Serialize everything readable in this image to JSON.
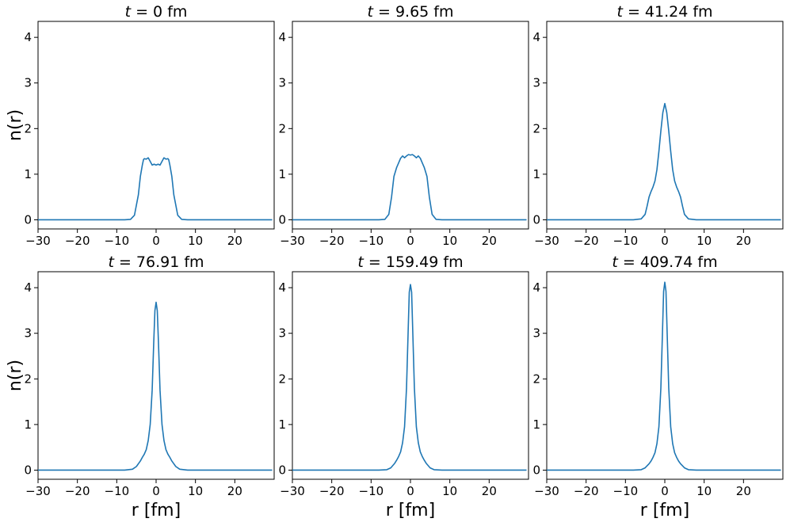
{
  "figure": {
    "ylabel": "n(r)",
    "xlabel": "r [fm]",
    "line_color": "#1f77b4"
  },
  "chart_data": [
    {
      "type": "line",
      "title_var": "t",
      "title_rest": " = 0 fm",
      "xlim": [
        -30,
        30
      ],
      "ylim": [
        -0.2,
        4.35
      ],
      "xticks": [
        -30,
        -20,
        -10,
        0,
        10,
        20
      ],
      "yticks": [
        0,
        1,
        2,
        3,
        4
      ],
      "show_xlabel": false,
      "show_ylabel": true,
      "x": [
        -30,
        -8,
        -6.5,
        -5.5,
        -4.5,
        -4,
        -3.5,
        -3.2,
        -3,
        -2.5,
        -2,
        -1.5,
        -1,
        -0.5,
        0,
        0.5,
        1,
        1.5,
        2,
        2.5,
        3,
        3.2,
        3.5,
        4,
        4.5,
        5.5,
        6.5,
        8,
        29.5
      ],
      "y": [
        0,
        0,
        0.01,
        0.1,
        0.55,
        0.95,
        1.2,
        1.32,
        1.34,
        1.33,
        1.36,
        1.28,
        1.2,
        1.22,
        1.2,
        1.22,
        1.2,
        1.28,
        1.36,
        1.33,
        1.34,
        1.32,
        1.2,
        0.95,
        0.55,
        0.1,
        0.01,
        0,
        0
      ]
    },
    {
      "type": "line",
      "title_var": "t",
      "title_rest": " = 9.65 fm",
      "xlim": [
        -30,
        30
      ],
      "ylim": [
        -0.2,
        4.35
      ],
      "xticks": [
        -30,
        -20,
        -10,
        0,
        10,
        20
      ],
      "yticks": [
        0,
        1,
        2,
        3,
        4
      ],
      "show_xlabel": false,
      "show_ylabel": false,
      "x": [
        -30,
        -8,
        -6.5,
        -5.5,
        -4.8,
        -4.2,
        -3.5,
        -3,
        -2.5,
        -2,
        -1.5,
        -1,
        -0.5,
        0,
        0.5,
        1,
        1.5,
        2,
        2.5,
        3,
        3.5,
        4.2,
        4.8,
        5.5,
        6.5,
        8,
        29.5
      ],
      "y": [
        0,
        0,
        0.01,
        0.12,
        0.5,
        0.95,
        1.15,
        1.25,
        1.35,
        1.4,
        1.36,
        1.4,
        1.43,
        1.42,
        1.43,
        1.4,
        1.36,
        1.4,
        1.35,
        1.25,
        1.15,
        0.95,
        0.5,
        0.12,
        0.01,
        0,
        0
      ]
    },
    {
      "type": "line",
      "title_var": "t",
      "title_rest": " = 41.24 fm",
      "xlim": [
        -30,
        30
      ],
      "ylim": [
        -0.2,
        4.35
      ],
      "xticks": [
        -30,
        -20,
        -10,
        0,
        10,
        20
      ],
      "yticks": [
        0,
        1,
        2,
        3,
        4
      ],
      "show_xlabel": false,
      "show_ylabel": false,
      "x": [
        -30,
        -8,
        -6,
        -5,
        -4.5,
        -4,
        -3.5,
        -3,
        -2.5,
        -2,
        -1.5,
        -1,
        -0.5,
        0,
        0.5,
        1,
        1.5,
        2,
        2.5,
        3,
        3.5,
        4,
        4.5,
        5,
        6,
        8,
        29.5
      ],
      "y": [
        0,
        0,
        0.02,
        0.12,
        0.3,
        0.5,
        0.62,
        0.72,
        0.85,
        1.1,
        1.5,
        1.95,
        2.35,
        2.55,
        2.35,
        1.95,
        1.5,
        1.1,
        0.85,
        0.72,
        0.62,
        0.5,
        0.3,
        0.12,
        0.02,
        0,
        0
      ]
    },
    {
      "type": "line",
      "title_var": "t",
      "title_rest": " = 76.91 fm",
      "xlim": [
        -30,
        30
      ],
      "ylim": [
        -0.2,
        4.35
      ],
      "xticks": [
        -30,
        -20,
        -10,
        0,
        10,
        20
      ],
      "yticks": [
        0,
        1,
        2,
        3,
        4
      ],
      "show_xlabel": true,
      "show_ylabel": true,
      "x": [
        -30,
        -8,
        -6,
        -5,
        -4,
        -3.5,
        -3,
        -2.5,
        -2,
        -1.5,
        -1,
        -0.6,
        -0.3,
        0,
        0.3,
        0.6,
        1,
        1.5,
        2,
        2.5,
        3,
        3.5,
        4,
        5,
        6,
        8,
        29.5
      ],
      "y": [
        0,
        0,
        0.02,
        0.08,
        0.2,
        0.28,
        0.35,
        0.45,
        0.65,
        1.0,
        1.75,
        2.8,
        3.5,
        3.68,
        3.5,
        2.8,
        1.75,
        1.0,
        0.65,
        0.45,
        0.35,
        0.28,
        0.2,
        0.08,
        0.02,
        0,
        0
      ]
    },
    {
      "type": "line",
      "title_var": "t",
      "title_rest": " = 159.49 fm",
      "xlim": [
        -30,
        30
      ],
      "ylim": [
        -0.2,
        4.35
      ],
      "xticks": [
        -30,
        -20,
        -10,
        0,
        10,
        20
      ],
      "yticks": [
        0,
        1,
        2,
        3,
        4
      ],
      "show_xlabel": true,
      "show_ylabel": false,
      "x": [
        -30,
        -8,
        -6,
        -5,
        -4,
        -3.5,
        -3,
        -2.5,
        -2,
        -1.5,
        -1,
        -0.6,
        -0.3,
        0,
        0.3,
        0.6,
        1,
        1.5,
        2,
        2.5,
        3,
        3.5,
        4,
        5,
        6,
        8,
        29.5
      ],
      "y": [
        0,
        0,
        0.01,
        0.05,
        0.15,
        0.22,
        0.3,
        0.4,
        0.6,
        0.95,
        1.8,
        3.0,
        3.9,
        4.07,
        3.9,
        3.0,
        1.8,
        0.95,
        0.6,
        0.4,
        0.3,
        0.22,
        0.15,
        0.05,
        0.01,
        0,
        0
      ]
    },
    {
      "type": "line",
      "title_var": "t",
      "title_rest": " = 409.74 fm",
      "xlim": [
        -30,
        30
      ],
      "ylim": [
        -0.2,
        4.35
      ],
      "xticks": [
        -30,
        -20,
        -10,
        0,
        10,
        20
      ],
      "yticks": [
        0,
        1,
        2,
        3,
        4
      ],
      "show_xlabel": true,
      "show_ylabel": false,
      "x": [
        -30,
        -8,
        -6,
        -5,
        -4,
        -3.5,
        -3,
        -2.5,
        -2,
        -1.5,
        -1,
        -0.6,
        -0.3,
        0,
        0.3,
        0.6,
        1,
        1.5,
        2,
        2.5,
        3,
        3.5,
        4,
        5,
        6,
        8,
        29.5
      ],
      "y": [
        0,
        0,
        0.01,
        0.05,
        0.14,
        0.2,
        0.28,
        0.38,
        0.58,
        0.95,
        1.8,
        3.0,
        3.92,
        4.12,
        3.92,
        3.0,
        1.8,
        0.95,
        0.58,
        0.38,
        0.28,
        0.2,
        0.14,
        0.05,
        0.01,
        0,
        0
      ]
    }
  ]
}
